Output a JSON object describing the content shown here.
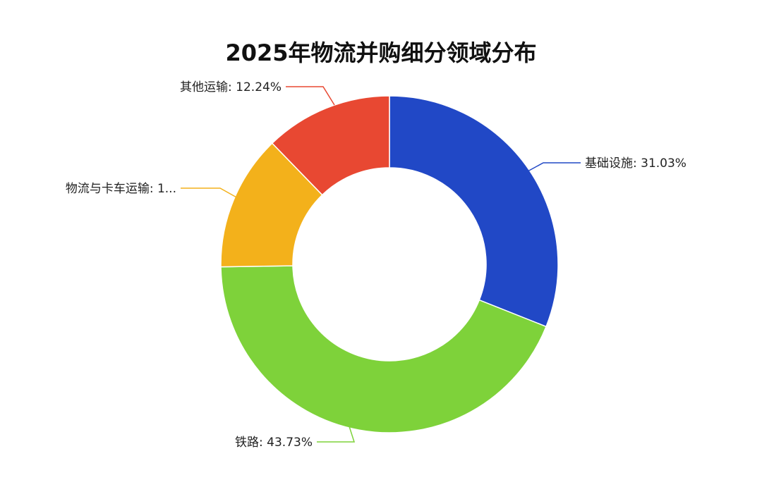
{
  "chart_data": {
    "type": "pie",
    "title": "2025年物流并购细分领域分布",
    "series": [
      {
        "name": "基础设施",
        "value": 31.03,
        "label": "基础设施: 31.03%",
        "color": "#2148C6"
      },
      {
        "name": "铁路",
        "value": 43.73,
        "label": "铁路: 43.73%",
        "color": "#7ED23A"
      },
      {
        "name": "物流与卡车运输",
        "value": 13.0,
        "label": "物流与卡车运输: 1...",
        "color": "#F3B11B"
      },
      {
        "name": "其他运输",
        "value": 12.24,
        "label": "其他运输: 12.24%",
        "color": "#E84832"
      }
    ],
    "legend": false
  }
}
